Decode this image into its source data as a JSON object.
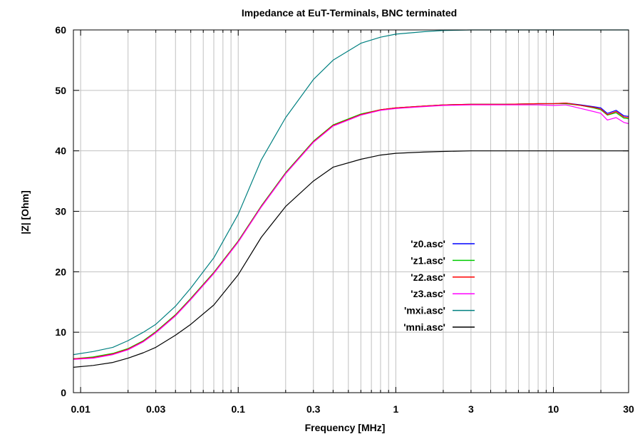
{
  "chart_data": {
    "type": "line",
    "title": "Impedance at EuT-Terminals, BNC terminated",
    "xlabel": "Frequency [MHz]",
    "ylabel": "|Z| [Ohm]",
    "xscale": "log",
    "xlim": [
      0.009,
      30
    ],
    "ylim": [
      0,
      60
    ],
    "grid": true,
    "legend_position": "center-right",
    "x_ticks": [
      {
        "value": 0.01,
        "label": "0.01"
      },
      {
        "value": 0.03,
        "label": "0.03"
      },
      {
        "value": 0.1,
        "label": "0.1"
      },
      {
        "value": 0.3,
        "label": "0.3"
      },
      {
        "value": 1,
        "label": "1"
      },
      {
        "value": 3,
        "label": "3"
      },
      {
        "value": 10,
        "label": "10"
      },
      {
        "value": 30,
        "label": "30"
      }
    ],
    "y_ticks": [
      {
        "value": 0,
        "label": "0"
      },
      {
        "value": 10,
        "label": "10"
      },
      {
        "value": 20,
        "label": "20"
      },
      {
        "value": 30,
        "label": "30"
      },
      {
        "value": 40,
        "label": "40"
      },
      {
        "value": 50,
        "label": "50"
      },
      {
        "value": 60,
        "label": "60"
      }
    ],
    "series": [
      {
        "name": "'z0.asc'",
        "color": "#0000ff",
        "x": [
          0.009,
          0.012,
          0.016,
          0.02,
          0.025,
          0.03,
          0.04,
          0.05,
          0.07,
          0.1,
          0.14,
          0.2,
          0.3,
          0.4,
          0.6,
          0.8,
          1,
          1.5,
          2,
          3,
          5,
          8,
          10,
          12,
          15,
          18,
          20,
          22,
          25,
          28,
          30
        ],
        "y": [
          5.6,
          5.8,
          6.4,
          7.2,
          8.5,
          10.0,
          12.8,
          15.5,
          19.8,
          25.0,
          30.8,
          36.3,
          41.5,
          44.2,
          46.0,
          46.8,
          47.1,
          47.4,
          47.6,
          47.7,
          47.7,
          47.8,
          47.8,
          47.9,
          47.6,
          47.3,
          47.1,
          46.2,
          46.7,
          45.8,
          45.7
        ]
      },
      {
        "name": "'z1.asc'",
        "color": "#00cc00",
        "x": [
          0.009,
          0.012,
          0.016,
          0.02,
          0.025,
          0.03,
          0.04,
          0.05,
          0.07,
          0.1,
          0.14,
          0.2,
          0.3,
          0.4,
          0.6,
          0.8,
          1,
          1.5,
          2,
          3,
          5,
          8,
          10,
          12,
          15,
          18,
          20,
          22,
          25,
          28,
          30
        ],
        "y": [
          5.6,
          5.9,
          6.5,
          7.3,
          8.6,
          10.1,
          12.9,
          15.6,
          19.9,
          25.1,
          30.9,
          36.4,
          41.6,
          44.3,
          46.1,
          46.8,
          47.1,
          47.4,
          47.6,
          47.7,
          47.7,
          47.8,
          47.8,
          47.8,
          47.5,
          47.1,
          46.8,
          45.9,
          46.3,
          45.4,
          45.3
        ]
      },
      {
        "name": "'z2.asc'",
        "color": "#ff0000",
        "x": [
          0.009,
          0.012,
          0.016,
          0.02,
          0.025,
          0.03,
          0.04,
          0.05,
          0.07,
          0.1,
          0.14,
          0.2,
          0.3,
          0.4,
          0.6,
          0.8,
          1,
          1.5,
          2,
          3,
          5,
          8,
          10,
          12,
          15,
          18,
          20,
          22,
          25,
          28,
          30
        ],
        "y": [
          5.6,
          5.8,
          6.4,
          7.2,
          8.5,
          10.0,
          12.8,
          15.5,
          19.8,
          25.0,
          30.8,
          36.3,
          41.5,
          44.2,
          46.0,
          46.8,
          47.1,
          47.4,
          47.6,
          47.7,
          47.7,
          47.8,
          47.8,
          47.9,
          47.5,
          47.2,
          46.9,
          46.0,
          46.5,
          45.6,
          45.5
        ]
      },
      {
        "name": "'z3.asc'",
        "color": "#ff00ff",
        "x": [
          0.009,
          0.012,
          0.016,
          0.02,
          0.025,
          0.03,
          0.04,
          0.05,
          0.07,
          0.1,
          0.14,
          0.2,
          0.3,
          0.4,
          0.6,
          0.8,
          1,
          1.5,
          2,
          3,
          5,
          8,
          10,
          12,
          15,
          18,
          20,
          22,
          25,
          28,
          30
        ],
        "y": [
          5.5,
          5.7,
          6.3,
          7.1,
          8.4,
          9.9,
          12.7,
          15.4,
          19.7,
          24.9,
          30.7,
          36.2,
          41.4,
          44.1,
          45.9,
          46.7,
          47.0,
          47.3,
          47.5,
          47.6,
          47.6,
          47.6,
          47.5,
          47.6,
          47.0,
          46.5,
          46.2,
          45.1,
          45.5,
          44.7,
          44.5
        ]
      },
      {
        "name": "'mxi.asc'",
        "color": "#008080",
        "x": [
          0.009,
          0.012,
          0.016,
          0.02,
          0.025,
          0.03,
          0.04,
          0.05,
          0.07,
          0.1,
          0.14,
          0.2,
          0.3,
          0.4,
          0.6,
          0.8,
          1,
          1.5,
          2,
          3,
          5,
          8,
          10,
          15,
          20,
          30
        ],
        "y": [
          6.3,
          6.8,
          7.5,
          8.6,
          10.0,
          11.3,
          14.3,
          17.3,
          22.3,
          29.5,
          38.5,
          45.5,
          51.8,
          55.0,
          57.8,
          58.8,
          59.3,
          59.7,
          59.9,
          60.0,
          60.0,
          60.0,
          60.0,
          60.0,
          60.0,
          60.0
        ]
      },
      {
        "name": "'mni.asc'",
        "color": "#000000",
        "x": [
          0.009,
          0.012,
          0.016,
          0.02,
          0.025,
          0.03,
          0.04,
          0.05,
          0.07,
          0.1,
          0.14,
          0.2,
          0.3,
          0.4,
          0.6,
          0.8,
          1,
          1.5,
          2,
          3,
          5,
          8,
          10,
          15,
          20,
          30
        ],
        "y": [
          4.2,
          4.5,
          5.0,
          5.7,
          6.6,
          7.5,
          9.5,
          11.3,
          14.5,
          19.5,
          25.7,
          30.8,
          35.0,
          37.3,
          38.6,
          39.3,
          39.6,
          39.8,
          39.9,
          40.0,
          40.0,
          40.0,
          40.0,
          40.0,
          40.0,
          40.0
        ]
      }
    ]
  }
}
